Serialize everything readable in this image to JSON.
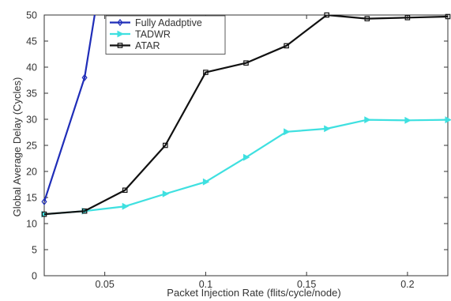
{
  "chart_data": {
    "type": "line",
    "title": "",
    "xlabel": "Packet Injection Rate (flits/cycle/node)",
    "ylabel": "Global Average Delay (Cycles)",
    "xlim": [
      0.02,
      0.22
    ],
    "ylim": [
      0,
      50
    ],
    "xticks": [
      0.05,
      0.1,
      0.15,
      0.2
    ],
    "xtick_labels": [
      "0.05",
      "0.1",
      "0.15",
      "0.2"
    ],
    "yticks": [
      0,
      5,
      10,
      15,
      20,
      25,
      30,
      35,
      40,
      45,
      50
    ],
    "ytick_labels": [
      "0",
      "5",
      "10",
      "15",
      "20",
      "25",
      "30",
      "35",
      "40",
      "45",
      "50"
    ],
    "grid": false,
    "legend_position": "top-left",
    "series": [
      {
        "name": "Fully Adadptive",
        "color": "#1f2db8",
        "marker": "diamond",
        "x": [
          0.02,
          0.04,
          0.045
        ],
        "y": [
          14.2,
          38.0,
          50
        ],
        "marker_mask": [
          true,
          true,
          false
        ]
      },
      {
        "name": "TADWR",
        "color": "#3fe0e0",
        "marker": "triangle-right",
        "x": [
          0.02,
          0.04,
          0.06,
          0.08,
          0.1,
          0.12,
          0.14,
          0.16,
          0.18,
          0.2,
          0.22
        ],
        "y": [
          11.8,
          12.4,
          13.3,
          15.7,
          18.0,
          22.7,
          27.6,
          28.2,
          29.9,
          29.8,
          29.9
        ],
        "marker_mask": [
          true,
          true,
          true,
          true,
          true,
          true,
          true,
          true,
          true,
          true,
          true
        ]
      },
      {
        "name": "ATAR",
        "color": "#111111",
        "marker": "square",
        "x": [
          0.02,
          0.04,
          0.06,
          0.08,
          0.1,
          0.12,
          0.14,
          0.16,
          0.18,
          0.2,
          0.22
        ],
        "y": [
          11.8,
          12.4,
          16.4,
          25.0,
          39.0,
          40.8,
          44.1,
          50.0,
          49.3,
          49.5,
          49.7
        ],
        "marker_mask": [
          true,
          true,
          true,
          true,
          true,
          true,
          true,
          true,
          true,
          true,
          true
        ]
      }
    ]
  }
}
